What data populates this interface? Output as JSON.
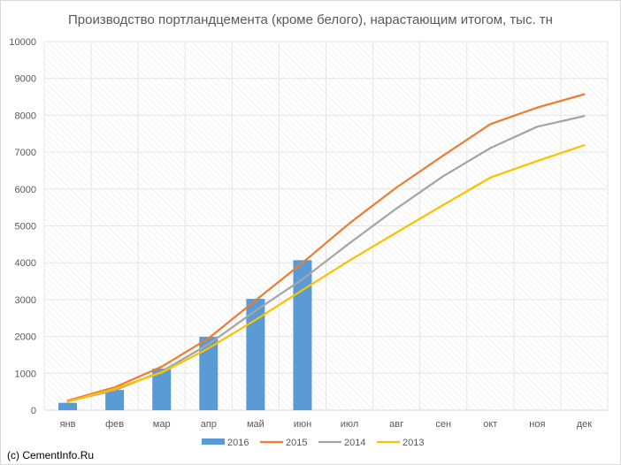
{
  "chart_data": {
    "type": "bar+line",
    "title": "Производство портландцемента (кроме белого), нарастающим итогом, тыс. тн",
    "categories": [
      "янв",
      "фев",
      "мар",
      "апр",
      "май",
      "июн",
      "июл",
      "авг",
      "сен",
      "окт",
      "ноя",
      "дек"
    ],
    "ylim": [
      0,
      10000
    ],
    "yticks": [
      0,
      1000,
      2000,
      3000,
      4000,
      5000,
      6000,
      7000,
      8000,
      9000,
      10000
    ],
    "grid": true,
    "legend_position": "bottom",
    "bar_series": [
      {
        "name": "2016",
        "color": "#5b9bd5",
        "values": [
          200,
          550,
          1130,
          1990,
          3020,
          4070,
          null,
          null,
          null,
          null,
          null,
          null
        ]
      }
    ],
    "line_series": [
      {
        "name": "2015",
        "color": "#ed7d31",
        "values": [
          260,
          620,
          1180,
          1950,
          2980,
          4000,
          5070,
          6040,
          6910,
          7760,
          8210,
          8570
        ]
      },
      {
        "name": "2014",
        "color": "#a5a5a5",
        "values": [
          240,
          540,
          1050,
          1790,
          2700,
          3550,
          4530,
          5470,
          6350,
          7110,
          7690,
          7980
        ]
      },
      {
        "name": "2013",
        "color": "#ffc000",
        "values": [
          230,
          580,
          1020,
          1680,
          2450,
          3260,
          4060,
          4820,
          5570,
          6310,
          6760,
          7190
        ]
      }
    ]
  },
  "credit": "(c) CementInfo.Ru"
}
